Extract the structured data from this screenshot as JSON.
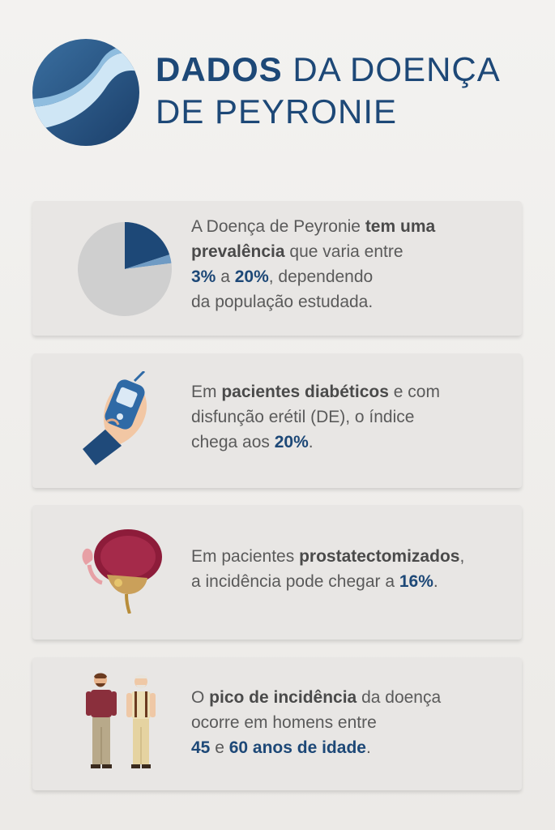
{
  "header": {
    "title_bold": "DADOS",
    "title_rest_line1": " DA DOENÇA",
    "title_line2": "DE PEYRONIE"
  },
  "cards": [
    {
      "icon": "pie-chart-icon",
      "parts": {
        "t1": "A Doença de Peyronie ",
        "b1": "tem uma",
        "b2": "prevalência",
        "t2": " que varia entre",
        "h1": "3%",
        "t3": " a ",
        "h2": "20%",
        "t4": ", dependendo",
        "t5": "da população estudada."
      }
    },
    {
      "icon": "glucometer-hand-icon",
      "parts": {
        "t1": "Em ",
        "b1": "pacientes diabéticos",
        "t2": " e com",
        "t3": "disfunção erétil (DE), o índice",
        "t4": "chega aos ",
        "h1": "20%",
        "t5": "."
      }
    },
    {
      "icon": "prostate-icon",
      "parts": {
        "t1": "Em pacientes ",
        "b1": "prostatectomizados",
        "t2": ",",
        "t3": "a incidência pode chegar a ",
        "h1": "16%",
        "t4": "."
      }
    },
    {
      "icon": "two-men-icon",
      "parts": {
        "t1": "O ",
        "b1": "pico de incidência",
        "t2": " da doença",
        "t3": "ocorre em homens entre",
        "h1": "45",
        "t4": " e ",
        "h2": "60 anos de idade",
        "t5": "."
      }
    }
  ],
  "colors": {
    "accent": "#1d4877",
    "card_bg": "#e8e6e4",
    "text": "#5a5a5a"
  },
  "chart_data": {
    "type": "pie",
    "values": [
      20,
      3,
      77
    ]
  }
}
